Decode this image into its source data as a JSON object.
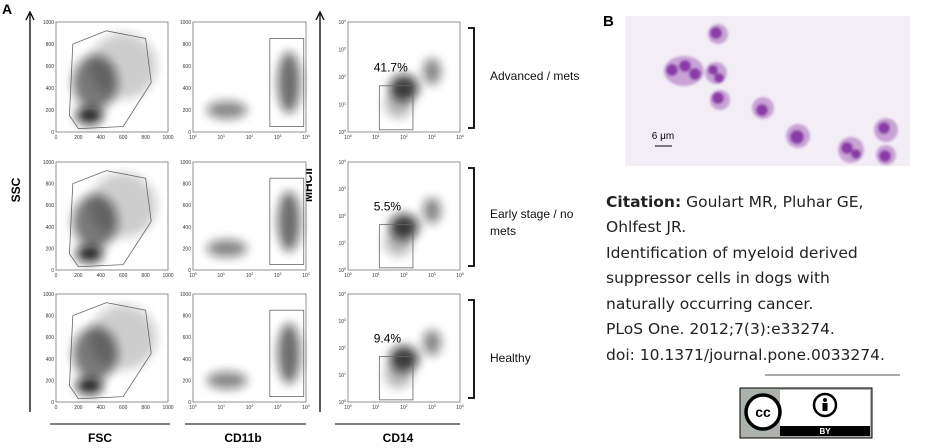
{
  "panel_a": {
    "label": "A",
    "y_axis_left": "SSC",
    "y_axis_mid": "MHCII",
    "x_axes": [
      "FSC",
      "CD11b",
      "CD14"
    ],
    "linear_ticks": [
      "0",
      "200",
      "400",
      "600",
      "800",
      "1000"
    ],
    "log_base": "10",
    "log_exponents": [
      "0",
      "1",
      "2",
      "3",
      "4"
    ],
    "percentages": [
      "41.7%",
      "5.5%",
      "9.4%"
    ],
    "groups": [
      "Advanced / mets",
      "Early stage / no mets",
      "Healthy"
    ]
  },
  "panel_b": {
    "label": "B",
    "scale_bar": "6 μm"
  },
  "citation": {
    "label": "Citation:",
    "first_line": "Goulart MR, Pluhar GE,",
    "lines": [
      "Ohlfest JR.",
      "Identification of myeloid derived",
      "suppressor cells in dogs with",
      "naturally occurring cancer.",
      "PLoS One. 2012;7(3):e33274.",
      "doi: 10.1371/journal.pone.0033274."
    ]
  },
  "license": {
    "cc": "cc",
    "by": "BY"
  }
}
